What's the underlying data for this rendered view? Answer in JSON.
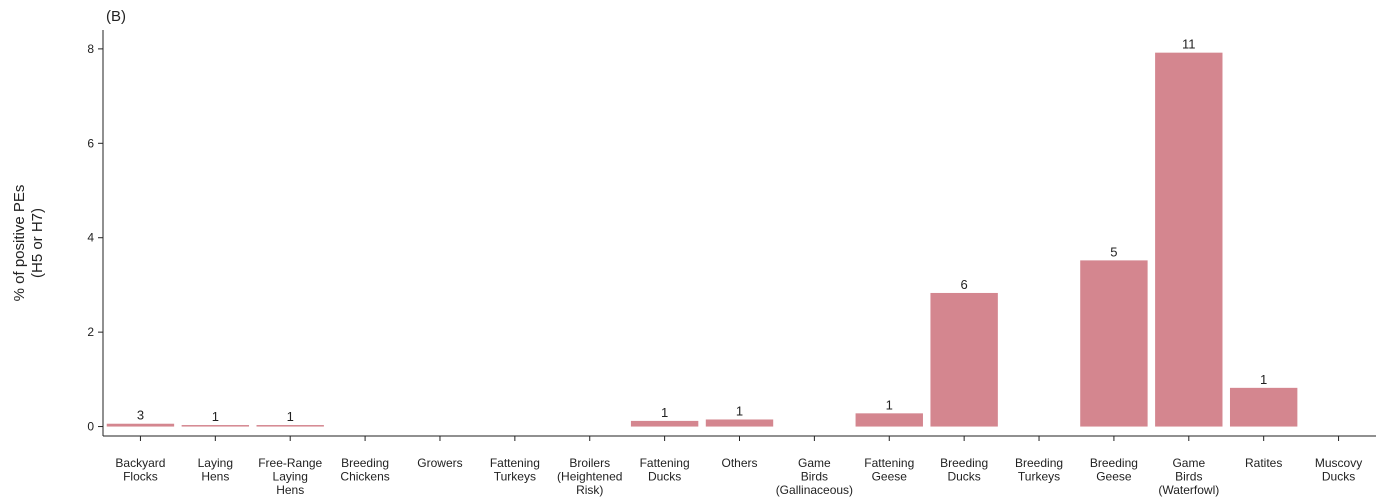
{
  "chart_data": {
    "type": "bar",
    "panel_label": "(B)",
    "ylabel": [
      "% of positive PEs",
      "(H5 or H7)"
    ],
    "xlabel": "",
    "ylim": [
      -0.2,
      8.4
    ],
    "yticks": [
      0,
      2,
      4,
      6,
      8
    ],
    "grid": false,
    "bar_color": "#d4868f",
    "categories": [
      [
        "Backyard",
        "Flocks"
      ],
      [
        "Laying",
        "Hens"
      ],
      [
        "Free-Range",
        "Laying",
        "Hens"
      ],
      [
        "Breeding",
        "Chickens"
      ],
      [
        "Growers"
      ],
      [
        "Fattening",
        "Turkeys"
      ],
      [
        "Broilers",
        "(Heightened",
        "Risk)"
      ],
      [
        "Fattening",
        "Ducks"
      ],
      [
        "Others"
      ],
      [
        "Game",
        "Birds",
        "(Gallinaceous)"
      ],
      [
        "Fattening",
        "Geese"
      ],
      [
        "Breeding",
        "Ducks"
      ],
      [
        "Breeding",
        "Turkeys"
      ],
      [
        "Breeding",
        "Geese"
      ],
      [
        "Game",
        "Birds",
        "(Waterfowl)"
      ],
      [
        "Ratites"
      ],
      [
        "Muscovy",
        "Ducks"
      ]
    ],
    "values": [
      0.06,
      0.03,
      0.03,
      0,
      0,
      0,
      0,
      0.12,
      0.15,
      0,
      0.28,
      2.83,
      0,
      3.52,
      7.92,
      0.82,
      0
    ],
    "data_labels": [
      "3",
      "1",
      "1",
      "",
      "",
      "",
      "",
      "1",
      "1",
      "",
      "1",
      "6",
      "",
      "5",
      "11",
      "1",
      ""
    ]
  }
}
